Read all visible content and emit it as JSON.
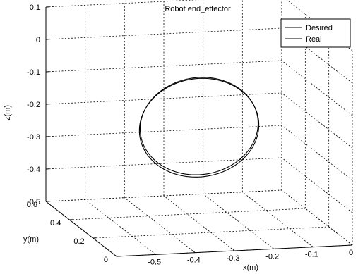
{
  "chart_data": {
    "type": "line",
    "title": "Robot end_effector",
    "xlabel": "x(m)",
    "ylabel": "y(m)",
    "zlabel": "z(m)",
    "xlim": [
      -0.6,
      0
    ],
    "ylim": [
      0,
      0.6
    ],
    "zlim": [
      -0.5,
      0.1
    ],
    "x_ticks": [
      "-0.5",
      "-0.4",
      "-0.3",
      "-0.2",
      "-0.1",
      "0"
    ],
    "y_ticks": [
      "0",
      "0.2",
      "0.4",
      "0.6"
    ],
    "z_ticks": [
      "0.1",
      "0",
      "-0.1",
      "-0.2",
      "-0.3",
      "-0.4",
      "-0.5"
    ],
    "grid": true,
    "legend_position": "top-right",
    "series": [
      {
        "name": "Desired",
        "shape": "circle",
        "center_x": -0.3,
        "center_y": 0.3,
        "center_z": -0.2,
        "radius": 0.15,
        "color": "#000000"
      },
      {
        "name": "Real",
        "shape": "circle",
        "center_x": -0.3,
        "center_y": 0.3,
        "center_z": -0.205,
        "radius": 0.152,
        "color": "#000000"
      }
    ]
  }
}
